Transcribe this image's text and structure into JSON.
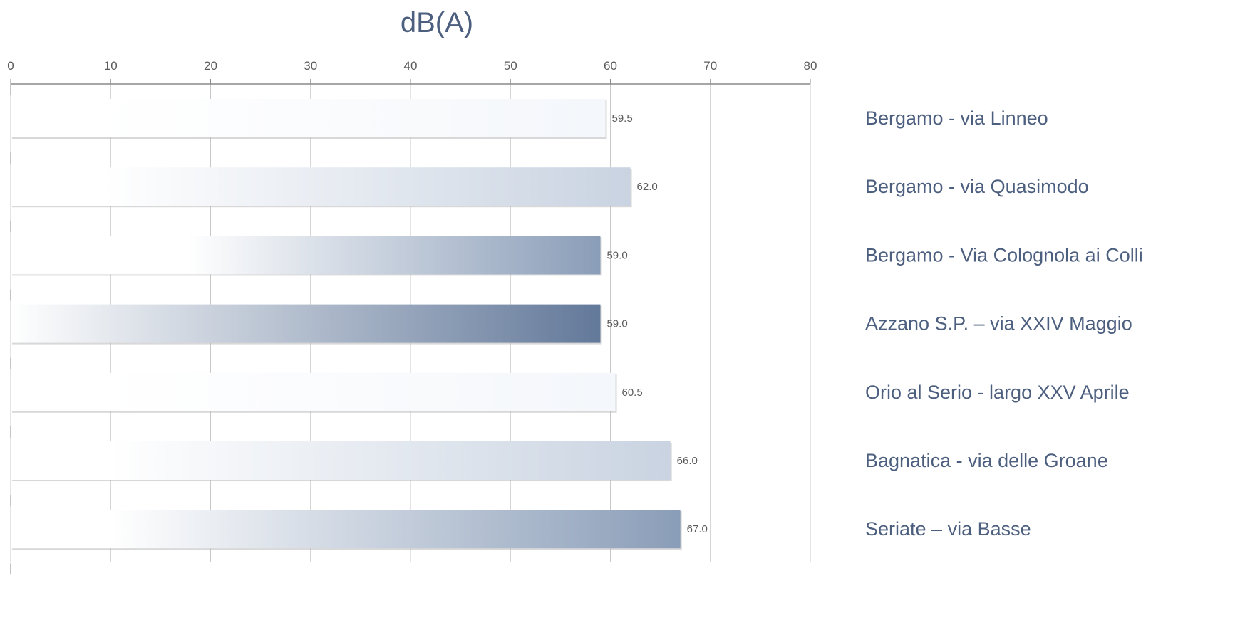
{
  "chart_data": {
    "type": "bar",
    "orientation": "horizontal",
    "title": "dB(A)",
    "xlim": [
      0,
      80
    ],
    "xticks": [
      0,
      10,
      20,
      30,
      40,
      50,
      60,
      70,
      80
    ],
    "grid": true,
    "categories": [
      "Bergamo - via Linneo",
      "Bergamo - via Quasimodo",
      "Bergamo - Via Colognola ai Colli",
      "Azzano S.P. – via XXIV Maggio",
      "Orio al Serio - largo XXV Aprile",
      "Bagnatica - via delle Groane",
      "Seriate – via Basse"
    ],
    "values": [
      59.5,
      62.0,
      59.0,
      59.0,
      60.5,
      66.0,
      67.0
    ],
    "value_labels": [
      "59.5",
      "62.0",
      "59.0",
      "59.0",
      "60.5",
      "66.0",
      "67.0"
    ],
    "bar_colors": [
      "#f4f7fb",
      "#c9d3e1",
      "#8a9db8",
      "#63799a",
      "#f4f7fb",
      "#c9d3e1",
      "#8a9db8"
    ],
    "gradient_start_fraction": [
      0.15,
      0.15,
      0.3,
      0.0,
      0.15,
      0.15,
      0.15
    ],
    "gradient_start_color": "#ffffff"
  }
}
